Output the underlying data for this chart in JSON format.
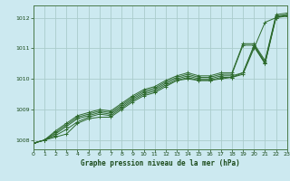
{
  "background_color": "#cce9f0",
  "grid_color": "#aacccc",
  "line_color": "#2d6a2d",
  "xlabel": "Graphe pression niveau de la mer (hPa)",
  "xlabel_color": "#1a4a1a",
  "ylabel_color": "#1a4a1a",
  "xmin": 0,
  "xmax": 23,
  "ymin": 1007.7,
  "ymax": 1012.4,
  "yticks": [
    1008,
    1009,
    1010,
    1011,
    1012
  ],
  "xticks": [
    0,
    1,
    2,
    3,
    4,
    5,
    6,
    7,
    8,
    9,
    10,
    11,
    12,
    13,
    14,
    15,
    16,
    17,
    18,
    19,
    20,
    21,
    22,
    23
  ],
  "series": [
    [
      1007.9,
      1008.0,
      1008.1,
      1008.2,
      1008.55,
      1008.7,
      1008.75,
      1008.75,
      1009.0,
      1009.25,
      1009.45,
      1009.55,
      1009.75,
      1009.95,
      1010.0,
      1009.95,
      1009.95,
      1010.0,
      1010.05,
      1010.15,
      1011.0,
      1011.85,
      1012.0,
      1012.1
    ],
    [
      1007.9,
      1008.0,
      1008.15,
      1008.35,
      1008.6,
      1008.75,
      1008.85,
      1008.8,
      1009.05,
      1009.3,
      1009.5,
      1009.6,
      1009.8,
      1009.95,
      1010.05,
      1009.95,
      1009.95,
      1010.05,
      1010.05,
      1010.2,
      1011.05,
      1010.5,
      1012.0,
      1012.05
    ],
    [
      1007.9,
      1008.0,
      1008.2,
      1008.45,
      1008.7,
      1008.8,
      1008.9,
      1008.85,
      1009.1,
      1009.35,
      1009.55,
      1009.65,
      1009.85,
      1010.0,
      1010.1,
      1010.0,
      1010.0,
      1010.1,
      1010.1,
      1010.2,
      1011.1,
      1010.5,
      1012.05,
      1012.05
    ],
    [
      1007.9,
      1008.0,
      1008.25,
      1008.5,
      1008.75,
      1008.85,
      1008.95,
      1008.9,
      1009.15,
      1009.4,
      1009.6,
      1009.7,
      1009.9,
      1010.05,
      1010.15,
      1010.05,
      1010.05,
      1010.15,
      1010.15,
      1011.1,
      1011.1,
      1010.55,
      1012.05,
      1012.1
    ],
    [
      1007.9,
      1008.0,
      1008.3,
      1008.55,
      1008.8,
      1008.9,
      1009.0,
      1008.95,
      1009.2,
      1009.45,
      1009.65,
      1009.75,
      1009.95,
      1010.1,
      1010.2,
      1010.1,
      1010.1,
      1010.2,
      1010.2,
      1011.15,
      1011.15,
      1010.6,
      1012.1,
      1012.15
    ]
  ]
}
